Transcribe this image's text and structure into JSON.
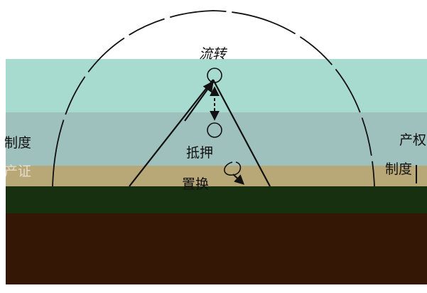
{
  "labels": {
    "top": "流转",
    "middle": "抵押",
    "lower": "置换",
    "left_line1": "制度",
    "left_line2": "产证",
    "right_line1": "产权",
    "right_line2": "制度"
  },
  "colors": {
    "band_teal": "#a8dbd0",
    "band_grayteal": "#9fc1be",
    "band_olive": "#b9a877",
    "band_darkgreen": "#17300f",
    "band_brown": "#351705",
    "line": "#111111"
  }
}
